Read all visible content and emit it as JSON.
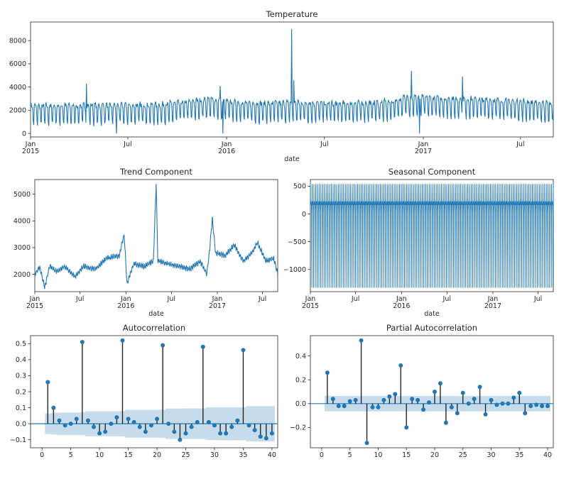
{
  "colors": {
    "line": "#1f77b4",
    "band": "#1f77b4",
    "stem": "#262626"
  },
  "chart_data": [
    {
      "type": "line",
      "title": "Temperature",
      "xlabel": "date",
      "ylabel": "",
      "xrange": [
        "2015-01-01",
        "2017-08-31"
      ],
      "ylim": [
        -300,
        9600
      ],
      "yticks": [
        0,
        2000,
        4000,
        6000,
        8000
      ],
      "xticks": [
        {
          "date": "2015-01-01",
          "label": "Jan",
          "year": "2015"
        },
        {
          "date": "2015-07-01",
          "label": "Jul",
          "year": ""
        },
        {
          "date": "2016-01-01",
          "label": "Jan",
          "year": "2016"
        },
        {
          "date": "2016-07-01",
          "label": "Jul",
          "year": ""
        },
        {
          "date": "2017-01-01",
          "label": "Jan",
          "year": "2017"
        },
        {
          "date": "2017-07-01",
          "label": "Jul",
          "year": ""
        }
      ],
      "series": [
        {
          "frequency": "daily",
          "weekly_pattern": "high on weekdays, sharp dips of roughly 1000-1500 below the level on one or two days each week",
          "level_points": [
            {
              "date": "2015-01-01",
              "value": 2100
            },
            {
              "date": "2015-05-01",
              "value": 2150
            },
            {
              "date": "2015-09-01",
              "value": 2200
            },
            {
              "date": "2015-12-01",
              "value": 2700
            },
            {
              "date": "2016-01-01",
              "value": 2500
            },
            {
              "date": "2016-03-01",
              "value": 2300
            },
            {
              "date": "2016-05-01",
              "value": 2400
            },
            {
              "date": "2016-08-01",
              "value": 2300
            },
            {
              "date": "2016-11-01",
              "value": 2450
            },
            {
              "date": "2016-12-01",
              "value": 2900
            },
            {
              "date": "2017-02-01",
              "value": 2750
            },
            {
              "date": "2017-06-01",
              "value": 2600
            },
            {
              "date": "2017-08-31",
              "value": 2300
            }
          ],
          "spikes": [
            {
              "date": "2015-04-15",
              "value": 4300
            },
            {
              "date": "2015-12-20",
              "value": 4100
            },
            {
              "date": "2016-05-01",
              "value": 9000
            },
            {
              "date": "2016-05-05",
              "value": 4600
            },
            {
              "date": "2016-12-10",
              "value": 5400
            },
            {
              "date": "2017-03-15",
              "value": 4900
            }
          ],
          "lows": [
            {
              "date": "2015-06-10",
              "value": 0
            },
            {
              "date": "2015-12-25",
              "value": 0
            },
            {
              "date": "2016-12-25",
              "value": 0
            }
          ]
        }
      ]
    },
    {
      "type": "line",
      "title": "Trend Component",
      "xlabel": "date",
      "ylabel": "",
      "xrange": [
        "2015-01-01",
        "2017-08-31"
      ],
      "ylim": [
        1350,
        5550
      ],
      "yticks": [
        2000,
        3000,
        4000,
        5000
      ],
      "xticks": [
        {
          "date": "2015-01-01",
          "label": "Jan",
          "year": "2015"
        },
        {
          "date": "2015-07-01",
          "label": "Jul",
          "year": ""
        },
        {
          "date": "2016-01-01",
          "label": "Jan",
          "year": "2016"
        },
        {
          "date": "2016-07-01",
          "label": "Jul",
          "year": ""
        },
        {
          "date": "2017-01-01",
          "label": "Jan",
          "year": "2017"
        },
        {
          "date": "2017-07-01",
          "label": "Jul",
          "year": ""
        }
      ],
      "series": [
        {
          "points": [
            {
              "date": "2015-01-01",
              "value": 2000
            },
            {
              "date": "2015-01-20",
              "value": 2300
            },
            {
              "date": "2015-02-10",
              "value": 1500
            },
            {
              "date": "2015-03-01",
              "value": 2300
            },
            {
              "date": "2015-04-01",
              "value": 2100
            },
            {
              "date": "2015-05-01",
              "value": 2300
            },
            {
              "date": "2015-06-10",
              "value": 1900
            },
            {
              "date": "2015-07-15",
              "value": 2300
            },
            {
              "date": "2015-09-01",
              "value": 2200
            },
            {
              "date": "2015-10-15",
              "value": 2600
            },
            {
              "date": "2015-12-05",
              "value": 2700
            },
            {
              "date": "2015-12-25",
              "value": 3500
            },
            {
              "date": "2016-01-05",
              "value": 1650
            },
            {
              "date": "2016-02-01",
              "value": 2400
            },
            {
              "date": "2016-03-15",
              "value": 2300
            },
            {
              "date": "2016-04-20",
              "value": 2500
            },
            {
              "date": "2016-05-01",
              "value": 5400
            },
            {
              "date": "2016-05-08",
              "value": 2500
            },
            {
              "date": "2016-06-15",
              "value": 2400
            },
            {
              "date": "2016-08-01",
              "value": 2300
            },
            {
              "date": "2016-09-15",
              "value": 2200
            },
            {
              "date": "2016-10-25",
              "value": 2500
            },
            {
              "date": "2016-11-20",
              "value": 2000
            },
            {
              "date": "2016-12-01",
              "value": 2900
            },
            {
              "date": "2016-12-12",
              "value": 4100
            },
            {
              "date": "2016-12-25",
              "value": 2800
            },
            {
              "date": "2017-02-01",
              "value": 2700
            },
            {
              "date": "2017-03-10",
              "value": 3100
            },
            {
              "date": "2017-04-15",
              "value": 2500
            },
            {
              "date": "2017-05-20",
              "value": 2800
            },
            {
              "date": "2017-06-10",
              "value": 3200
            },
            {
              "date": "2017-07-15",
              "value": 2500
            },
            {
              "date": "2017-08-15",
              "value": 2600
            },
            {
              "date": "2017-08-31",
              "value": 2000
            }
          ]
        }
      ]
    },
    {
      "type": "line",
      "title": "Seasonal Component",
      "xlabel": "date",
      "ylabel": "",
      "xrange": [
        "2015-01-01",
        "2017-08-31"
      ],
      "ylim": [
        -1400,
        620
      ],
      "yticks": [
        -1000,
        -500,
        0,
        500
      ],
      "xticks": [
        {
          "date": "2015-01-01",
          "label": "Jan",
          "year": "2015"
        },
        {
          "date": "2015-07-01",
          "label": "Jul",
          "year": ""
        },
        {
          "date": "2016-01-01",
          "label": "Jan",
          "year": "2016"
        },
        {
          "date": "2016-07-01",
          "label": "Jul",
          "year": ""
        },
        {
          "date": "2017-01-01",
          "label": "Jan",
          "year": "2017"
        },
        {
          "date": "2017-07-01",
          "label": "Jul",
          "year": ""
        }
      ],
      "series": [
        {
          "period_days": 7,
          "weekly_pattern": [
            540,
            160,
            200,
            230,
            190,
            10,
            -1330
          ]
        }
      ]
    },
    {
      "type": "stem",
      "title": "Autocorrelation",
      "xlabel": "",
      "ylabel": "",
      "xlim": [
        -2,
        41
      ],
      "ylim": [
        -0.15,
        0.55
      ],
      "xticks": [
        0,
        5,
        10,
        15,
        20,
        25,
        30,
        35,
        40
      ],
      "yticks": [
        -0.1,
        0.0,
        0.1,
        0.2,
        0.3,
        0.4,
        0.5
      ],
      "lags": [
        1,
        2,
        3,
        4,
        5,
        6,
        7,
        8,
        9,
        10,
        11,
        12,
        13,
        14,
        15,
        16,
        17,
        18,
        19,
        20,
        21,
        22,
        23,
        24,
        25,
        26,
        27,
        28,
        29,
        30,
        31,
        32,
        33,
        34,
        35,
        36,
        37,
        38,
        39,
        40
      ],
      "values": [
        0.26,
        0.1,
        0.02,
        -0.01,
        0.0,
        0.03,
        0.51,
        0.02,
        -0.02,
        -0.06,
        -0.05,
        0.0,
        0.04,
        0.52,
        0.03,
        0.01,
        -0.02,
        -0.05,
        -0.01,
        0.03,
        0.49,
        0.0,
        -0.05,
        -0.1,
        -0.06,
        -0.02,
        0.01,
        0.48,
        0.01,
        -0.01,
        -0.06,
        -0.06,
        -0.02,
        0.02,
        0.46,
        -0.01,
        -0.04,
        -0.08,
        -0.09,
        -0.06
      ],
      "confidence": [
        0.065,
        0.067,
        0.07,
        0.07,
        0.07,
        0.07,
        0.071,
        0.078,
        0.078,
        0.078,
        0.078,
        0.078,
        0.078,
        0.079,
        0.087,
        0.087,
        0.087,
        0.087,
        0.087,
        0.087,
        0.088,
        0.095,
        0.095,
        0.095,
        0.096,
        0.096,
        0.096,
        0.096,
        0.102,
        0.102,
        0.103,
        0.103,
        0.103,
        0.103,
        0.103,
        0.11,
        0.11,
        0.11,
        0.11,
        0.11
      ]
    },
    {
      "type": "stem",
      "title": "Partial Autocorrelation",
      "xlabel": "",
      "ylabel": "",
      "xlim": [
        -2,
        41
      ],
      "ylim": [
        -0.37,
        0.57
      ],
      "xticks": [
        0,
        5,
        10,
        15,
        20,
        25,
        30,
        35,
        40
      ],
      "yticks": [
        -0.2,
        0.0,
        0.2,
        0.4
      ],
      "lags": [
        1,
        2,
        3,
        4,
        5,
        6,
        7,
        8,
        9,
        10,
        11,
        12,
        13,
        14,
        15,
        16,
        17,
        18,
        19,
        20,
        21,
        22,
        23,
        24,
        25,
        26,
        27,
        28,
        29,
        30,
        31,
        32,
        33,
        34,
        35,
        36,
        37,
        38,
        39,
        40
      ],
      "values": [
        0.26,
        0.04,
        -0.02,
        -0.02,
        0.02,
        0.03,
        0.53,
        -0.33,
        -0.03,
        -0.03,
        0.03,
        0.06,
        0.08,
        0.32,
        -0.2,
        0.04,
        0.03,
        -0.05,
        0.01,
        0.1,
        0.17,
        -0.16,
        -0.03,
        -0.08,
        0.09,
        0.0,
        0.04,
        0.14,
        -0.09,
        0.03,
        -0.01,
        0.0,
        0.0,
        0.05,
        0.09,
        -0.08,
        -0.02,
        -0.01,
        -0.02,
        -0.02
      ],
      "confidence": 0.065
    }
  ]
}
